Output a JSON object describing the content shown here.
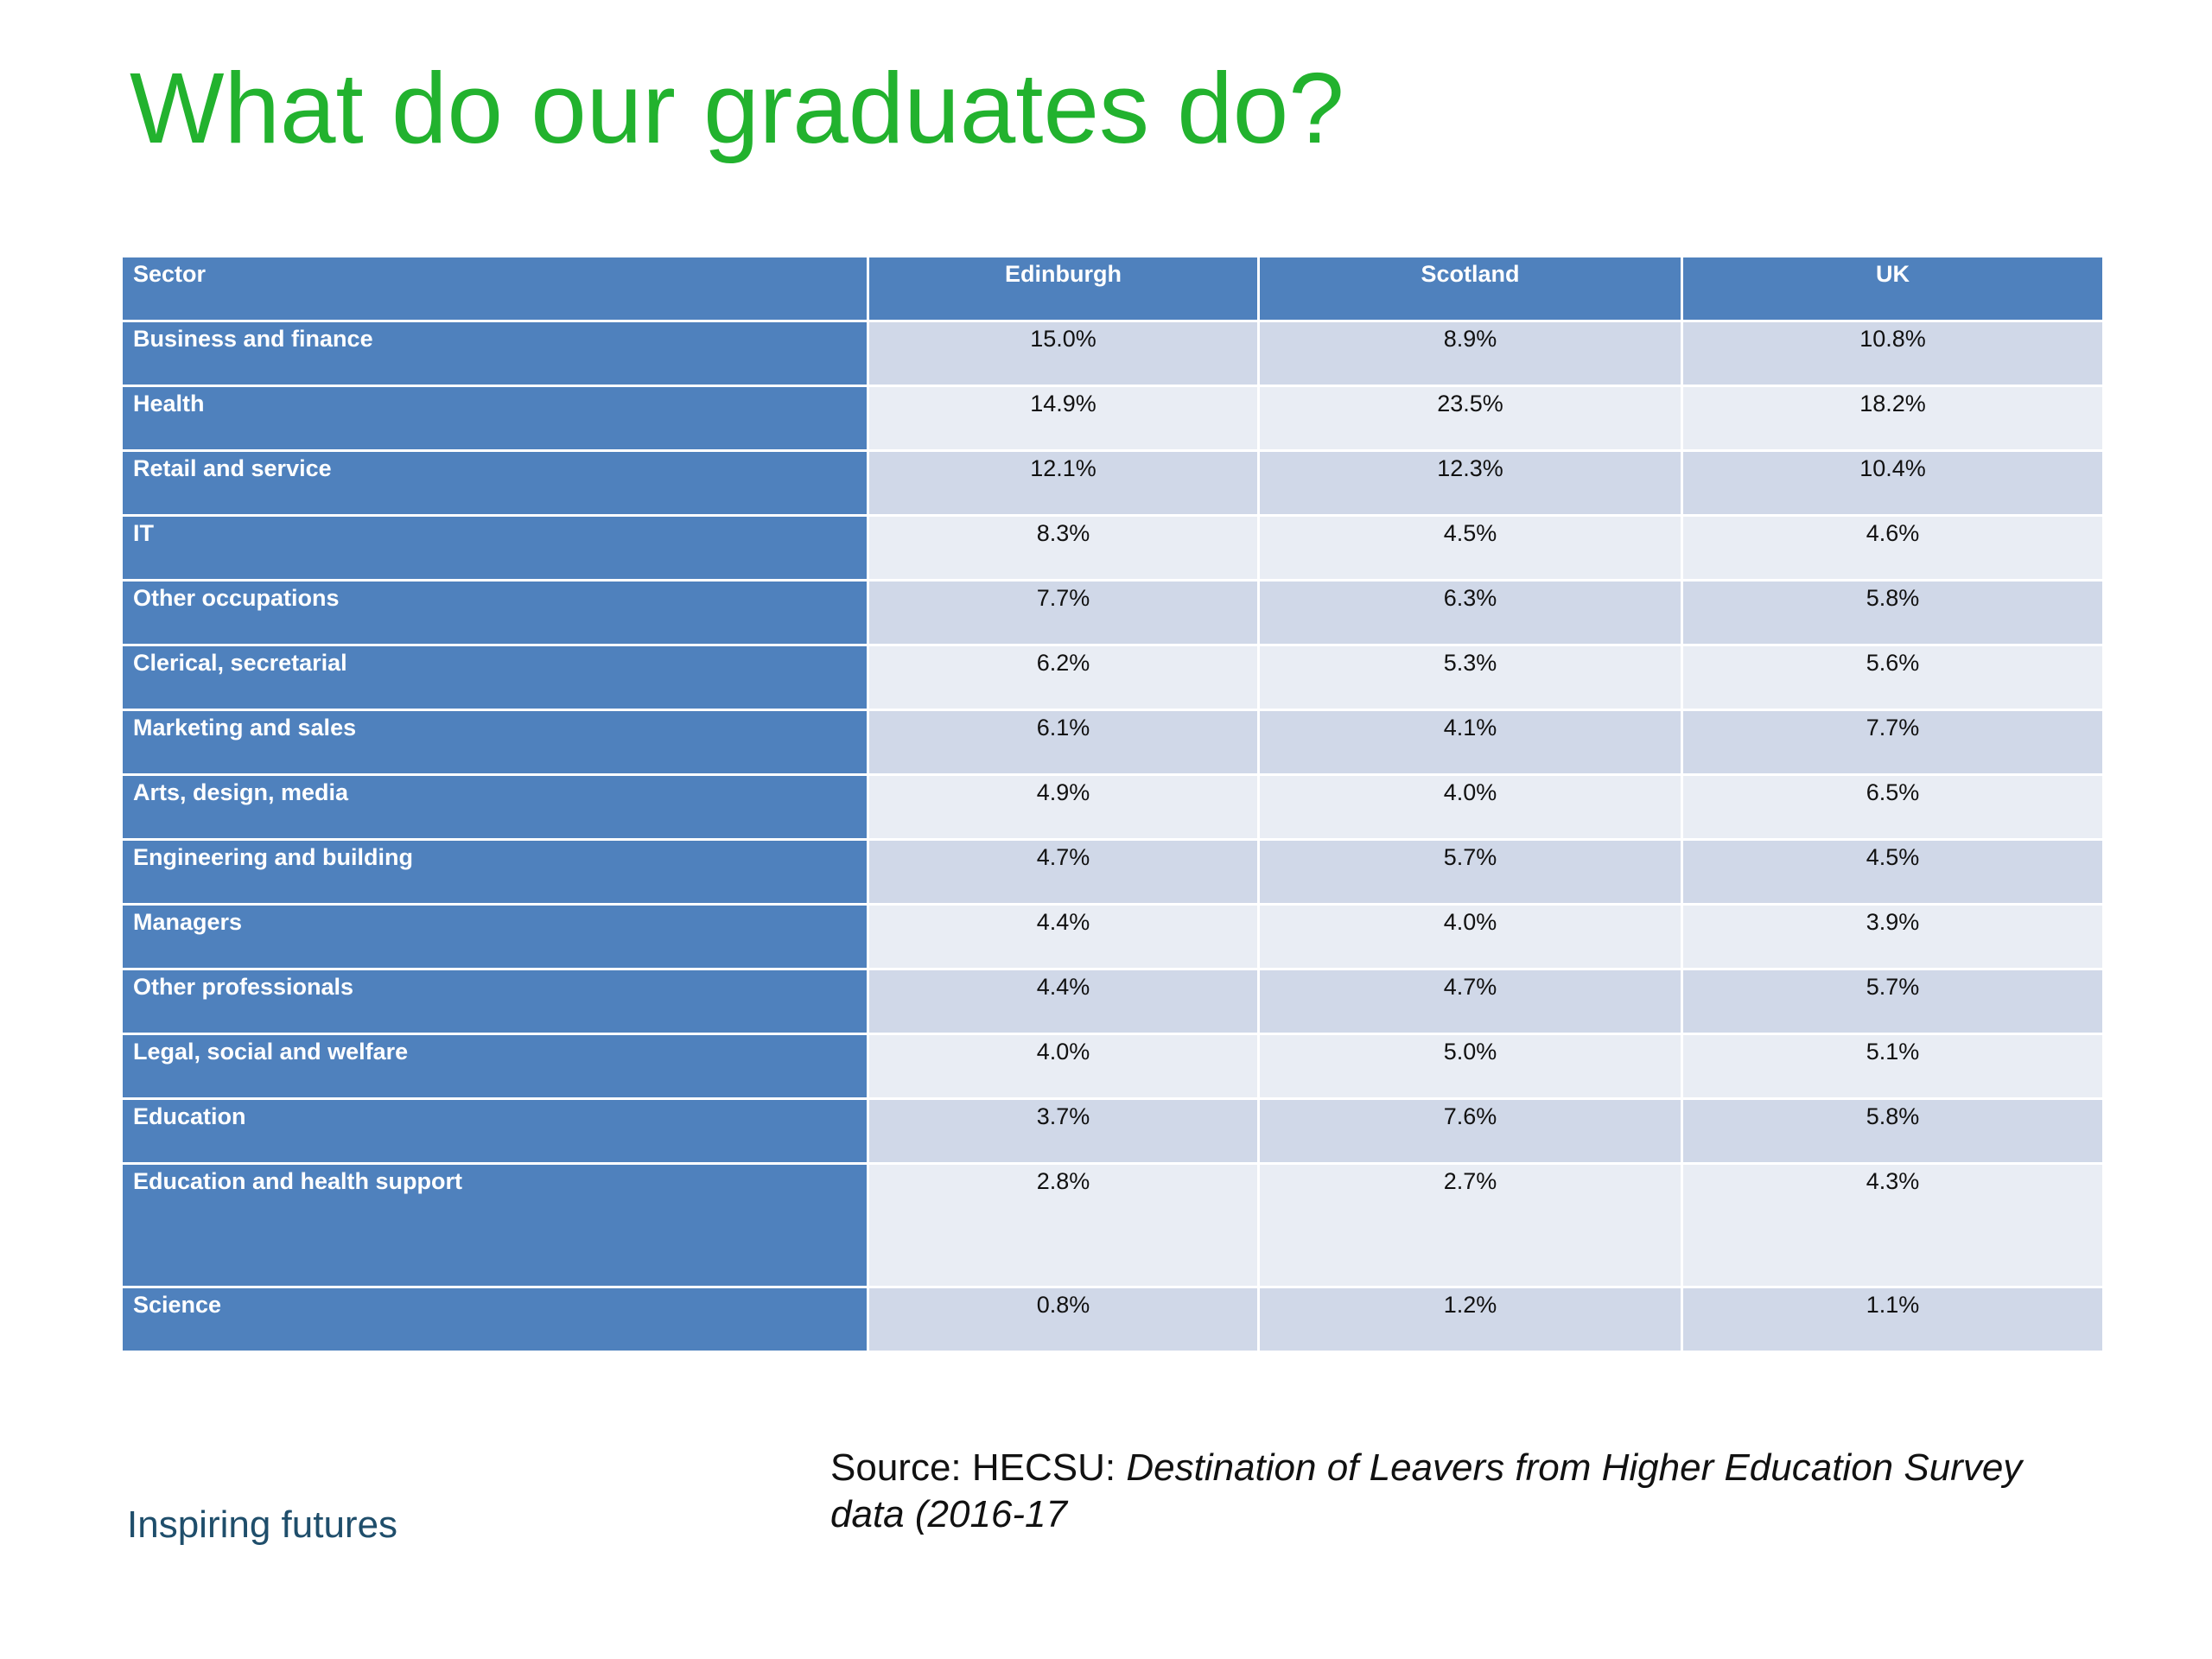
{
  "title": "What do our graduates do?",
  "table": {
    "headers": [
      "Sector",
      "Edinburgh",
      "Scotland",
      "UK"
    ],
    "rows": [
      {
        "sector": "Business and finance",
        "edinburgh": "15.0%",
        "scotland": "8.9%",
        "uk": "10.8%"
      },
      {
        "sector": "Health",
        "edinburgh": "14.9%",
        "scotland": "23.5%",
        "uk": "18.2%"
      },
      {
        "sector": "Retail and service",
        "edinburgh": "12.1%",
        "scotland": "12.3%",
        "uk": "10.4%"
      },
      {
        "sector": "IT",
        "edinburgh": "8.3%",
        "scotland": "4.5%",
        "uk": "4.6%"
      },
      {
        "sector": "Other occupations",
        "edinburgh": "7.7%",
        "scotland": "6.3%",
        "uk": "5.8%"
      },
      {
        "sector": "Clerical, secretarial",
        "edinburgh": "6.2%",
        "scotland": "5.3%",
        "uk": "5.6%"
      },
      {
        "sector": "Marketing and sales",
        "edinburgh": "6.1%",
        "scotland": "4.1%",
        "uk": "7.7%"
      },
      {
        "sector": "Arts, design, media",
        "edinburgh": "4.9%",
        "scotland": "4.0%",
        "uk": "6.5%"
      },
      {
        "sector": "Engineering and building",
        "edinburgh": "4.7%",
        "scotland": "5.7%",
        "uk": "4.5%"
      },
      {
        "sector": "Managers",
        "edinburgh": "4.4%",
        "scotland": "4.0%",
        "uk": "3.9%"
      },
      {
        "sector": "Other professionals",
        "edinburgh": "4.4%",
        "scotland": "4.7%",
        "uk": "5.7%"
      },
      {
        "sector": "Legal, social and welfare",
        "edinburgh": "4.0%",
        "scotland": "5.0%",
        "uk": "5.1%"
      },
      {
        "sector": "Education",
        "edinburgh": "3.7%",
        "scotland": "7.6%",
        "uk": "5.8%"
      },
      {
        "sector": "Education and health support",
        "edinburgh": "2.8%",
        "scotland": "2.7%",
        "uk": "4.3%"
      },
      {
        "sector": "Science",
        "edinburgh": "0.8%",
        "scotland": "1.2%",
        "uk": "1.1%"
      }
    ]
  },
  "footer": {
    "brand": "Inspiring futures",
    "source_prefix": "Source: HECSU: ",
    "source_title": "Destination of Leavers from Higher Education Survey data (2016-17"
  },
  "colors": {
    "title": "#22b22e",
    "header_bg": "#4f81bd",
    "row_band_dark": "#d0d8e8",
    "row_band_light": "#e9edf4",
    "brand_text": "#1f4e6b"
  }
}
